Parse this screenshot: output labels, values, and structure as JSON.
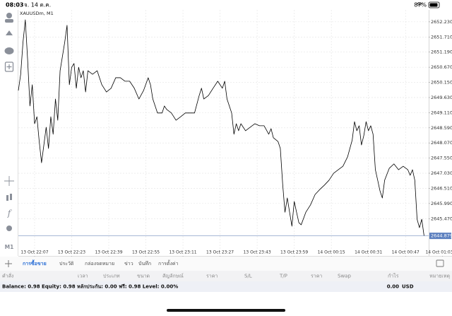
{
  "status_bar": {
    "time": "08:03",
    "date": "จ. 14 ต.ค.",
    "battery": "87%"
  },
  "toolbar": {
    "timeframe": "M1"
  },
  "chart_data": {
    "type": "line",
    "title": "XAUUSDm, M1",
    "color": "#000000",
    "grid": true,
    "x": [
      "13 Oct 22:00",
      "13 Oct 22:01",
      "13 Oct 22:02",
      "13 Oct 22:03",
      "13 Oct 22:04",
      "13 Oct 22:05",
      "13 Oct 22:06",
      "13 Oct 22:07",
      "13 Oct 22:08",
      "13 Oct 22:09",
      "13 Oct 22:10",
      "13 Oct 22:11",
      "13 Oct 22:12",
      "13 Oct 22:13",
      "13 Oct 22:14",
      "13 Oct 22:15",
      "13 Oct 22:16",
      "13 Oct 22:17",
      "13 Oct 22:18",
      "13 Oct 22:19",
      "13 Oct 22:20",
      "13 Oct 22:21",
      "13 Oct 22:22",
      "13 Oct 22:23",
      "13 Oct 22:24",
      "13 Oct 22:25",
      "13 Oct 22:26",
      "13 Oct 22:27",
      "13 Oct 22:28",
      "13 Oct 22:29",
      "13 Oct 22:30",
      "13 Oct 22:32",
      "13 Oct 22:34",
      "13 Oct 22:36",
      "13 Oct 22:38",
      "13 Oct 22:40",
      "13 Oct 22:42",
      "13 Oct 22:44",
      "13 Oct 22:46",
      "13 Oct 22:48",
      "13 Oct 22:50",
      "13 Oct 22:52",
      "13 Oct 22:54",
      "13 Oct 22:56",
      "13 Oct 22:57",
      "13 Oct 22:58",
      "13 Oct 23:00",
      "13 Oct 23:02",
      "13 Oct 23:03",
      "13 Oct 23:04",
      "13 Oct 23:06",
      "13 Oct 23:08",
      "13 Oct 23:10",
      "13 Oct 23:12",
      "13 Oct 23:14",
      "13 Oct 23:16",
      "13 Oct 23:18",
      "13 Oct 23:19",
      "13 Oct 23:20",
      "13 Oct 23:22",
      "13 Oct 23:24",
      "13 Oct 23:26",
      "13 Oct 23:28",
      "13 Oct 23:29",
      "13 Oct 23:30",
      "13 Oct 23:32",
      "13 Oct 23:33",
      "13 Oct 23:34",
      "13 Oct 23:35",
      "13 Oct 23:36",
      "13 Oct 23:38",
      "13 Oct 23:40",
      "13 Oct 23:42",
      "13 Oct 23:44",
      "13 Oct 23:46",
      "13 Oct 23:48",
      "13 Oct 23:49",
      "13 Oct 23:50",
      "13 Oct 23:52",
      "13 Oct 23:53",
      "13 Oct 23:54",
      "13 Oct 23:55",
      "13 Oct 23:56",
      "13 Oct 23:57",
      "13 Oct 23:58",
      "13 Oct 23:59",
      "14 Oct 00:00",
      "14 Oct 00:01",
      "14 Oct 00:02",
      "14 Oct 00:04",
      "14 Oct 00:06",
      "14 Oct 00:08",
      "14 Oct 00:10",
      "14 Oct 00:12",
      "14 Oct 00:14",
      "14 Oct 00:16",
      "14 Oct 00:18",
      "14 Oct 00:20",
      "14 Oct 00:22",
      "14 Oct 00:24",
      "14 Oct 00:25",
      "14 Oct 00:26",
      "14 Oct 00:27",
      "14 Oct 00:28",
      "14 Oct 00:29",
      "14 Oct 00:30",
      "14 Oct 00:31",
      "14 Oct 00:32",
      "14 Oct 00:33",
      "14 Oct 00:34",
      "14 Oct 00:35",
      "14 Oct 00:36",
      "14 Oct 00:37",
      "14 Oct 00:38",
      "14 Oct 00:40",
      "14 Oct 00:42",
      "14 Oct 00:44",
      "14 Oct 00:46",
      "14 Oct 00:48",
      "14 Oct 00:49",
      "14 Oct 00:50",
      "14 Oct 00:51",
      "14 Oct 00:52",
      "14 Oct 00:53",
      "14 Oct 00:54",
      "14 Oct 00:55"
    ],
    "values": [
      2649.87,
      2650.43,
      2651.53,
      2652.3,
      2650.92,
      2649.34,
      2650.07,
      2648.73,
      2648.97,
      2648.12,
      2647.39,
      2648.0,
      2648.61,
      2647.88,
      2648.97,
      2648.37,
      2649.58,
      2648.85,
      2650.55,
      2651.04,
      2651.53,
      2652.11,
      2650.07,
      2650.67,
      2650.8,
      2649.95,
      2650.67,
      2650.31,
      2650.55,
      2649.82,
      2650.55,
      2650.43,
      2650.55,
      2650.07,
      2649.82,
      2649.95,
      2650.31,
      2650.31,
      2650.19,
      2650.19,
      2649.95,
      2649.58,
      2649.87,
      2650.31,
      2650.07,
      2649.58,
      2649.1,
      2649.1,
      2649.34,
      2649.22,
      2649.1,
      2648.85,
      2648.97,
      2649.1,
      2649.1,
      2649.1,
      2649.7,
      2649.95,
      2649.58,
      2649.7,
      2649.95,
      2650.19,
      2649.95,
      2650.19,
      2649.58,
      2649.1,
      2648.37,
      2648.73,
      2648.49,
      2648.73,
      2648.49,
      2648.61,
      2648.73,
      2648.66,
      2648.66,
      2648.37,
      2648.56,
      2648.25,
      2648.12,
      2647.88,
      2646.67,
      2645.69,
      2646.18,
      2645.69,
      2645.21,
      2646.06,
      2645.69,
      2645.33,
      2645.26,
      2645.69,
      2645.94,
      2646.3,
      2646.47,
      2646.62,
      2646.79,
      2647.03,
      2647.15,
      2647.27,
      2647.59,
      2648.17,
      2648.8,
      2648.49,
      2648.66,
      2648.0,
      2648.32,
      2648.8,
      2648.49,
      2648.66,
      2648.37,
      2647.15,
      2646.79,
      2646.42,
      2646.18,
      2646.79,
      2647.2,
      2647.35,
      2647.15,
      2647.27,
      2647.15,
      2646.96,
      2647.15,
      2646.79,
      2645.45,
      2645.16,
      2645.45,
      2644.88
    ],
    "xlim": [
      "13 Oct 22:00",
      "14 Oct 00:57"
    ],
    "ylim": [
      2644.19,
      2652.64
    ],
    "xticks": [
      "13 Oct 22:07",
      "13 Oct 22:23",
      "13 Oct 22:39",
      "13 Oct 22:55",
      "13 Oct 23:11",
      "13 Oct 23:27",
      "13 Oct 23:43",
      "13 Oct 23:59",
      "14 Oct 00:15",
      "14 Oct 00:31",
      "14 Oct 00:47",
      "14 Oct 01:03"
    ],
    "yticks": [
      {
        "value": 2652.23,
        "label": "2652.230"
      },
      {
        "value": 2651.71,
        "label": "2651.710"
      },
      {
        "value": 2651.19,
        "label": "2651.190"
      },
      {
        "value": 2650.67,
        "label": "2650.670"
      },
      {
        "value": 2650.15,
        "label": "2650.150"
      },
      {
        "value": 2649.63,
        "label": "2649.630"
      },
      {
        "value": 2649.11,
        "label": "2649.110"
      },
      {
        "value": 2648.59,
        "label": "2648.590"
      },
      {
        "value": 2648.07,
        "label": "2648.070"
      },
      {
        "value": 2647.55,
        "label": "2647.550"
      },
      {
        "value": 2647.03,
        "label": "2647.030"
      },
      {
        "value": 2646.51,
        "label": "2646.510"
      },
      {
        "value": 2645.99,
        "label": "2645.990"
      },
      {
        "value": 2645.47,
        "label": "2645.470"
      }
    ],
    "last_price": 2644.879
  },
  "tabs": [
    "การซื้อขาย",
    "ประวัติ",
    "กล่องจดหมาย",
    "ข่าว",
    "บันทึก",
    "การตั้งค่า"
  ],
  "columns": [
    "คำสั่ง",
    "เวลา",
    "ประเภท",
    "ขนาด",
    "สัญลักษณ์",
    "ราคา",
    "S/L",
    "T/P",
    "ราคา",
    "Swap",
    "กำไร",
    "หมายเหตุ"
  ],
  "summary": {
    "account": "Balance: 0.98 Equity: 0.98 หลักประกัน: 0.00 ฟรี: 0.98 Level: 0.00%",
    "profit": "0.00",
    "currency": "USD"
  }
}
